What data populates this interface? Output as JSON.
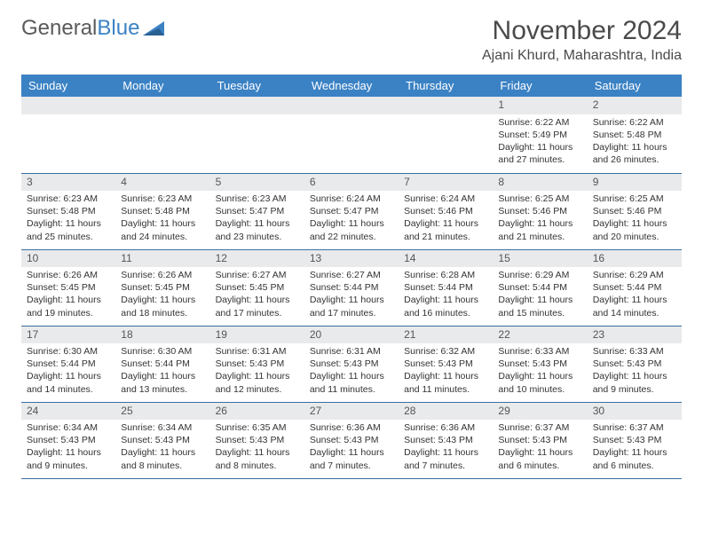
{
  "brand": {
    "part1": "General",
    "part2": "Blue"
  },
  "title": "November 2024",
  "location": "Ajani Khurd, Maharashtra, India",
  "colors": {
    "header_bg": "#3b82c4",
    "header_text": "#ffffff",
    "daynum_bg": "#e9eaec",
    "border": "#3b6fa0",
    "text": "#333333",
    "brand_gray": "#5a5a5a",
    "brand_blue": "#3b82c4"
  },
  "day_names": [
    "Sunday",
    "Monday",
    "Tuesday",
    "Wednesday",
    "Thursday",
    "Friday",
    "Saturday"
  ],
  "weeks": [
    [
      null,
      null,
      null,
      null,
      null,
      {
        "n": "1",
        "sr": "6:22 AM",
        "ss": "5:49 PM",
        "dl": "11 hours and 27 minutes."
      },
      {
        "n": "2",
        "sr": "6:22 AM",
        "ss": "5:48 PM",
        "dl": "11 hours and 26 minutes."
      }
    ],
    [
      {
        "n": "3",
        "sr": "6:23 AM",
        "ss": "5:48 PM",
        "dl": "11 hours and 25 minutes."
      },
      {
        "n": "4",
        "sr": "6:23 AM",
        "ss": "5:48 PM",
        "dl": "11 hours and 24 minutes."
      },
      {
        "n": "5",
        "sr": "6:23 AM",
        "ss": "5:47 PM",
        "dl": "11 hours and 23 minutes."
      },
      {
        "n": "6",
        "sr": "6:24 AM",
        "ss": "5:47 PM",
        "dl": "11 hours and 22 minutes."
      },
      {
        "n": "7",
        "sr": "6:24 AM",
        "ss": "5:46 PM",
        "dl": "11 hours and 21 minutes."
      },
      {
        "n": "8",
        "sr": "6:25 AM",
        "ss": "5:46 PM",
        "dl": "11 hours and 21 minutes."
      },
      {
        "n": "9",
        "sr": "6:25 AM",
        "ss": "5:46 PM",
        "dl": "11 hours and 20 minutes."
      }
    ],
    [
      {
        "n": "10",
        "sr": "6:26 AM",
        "ss": "5:45 PM",
        "dl": "11 hours and 19 minutes."
      },
      {
        "n": "11",
        "sr": "6:26 AM",
        "ss": "5:45 PM",
        "dl": "11 hours and 18 minutes."
      },
      {
        "n": "12",
        "sr": "6:27 AM",
        "ss": "5:45 PM",
        "dl": "11 hours and 17 minutes."
      },
      {
        "n": "13",
        "sr": "6:27 AM",
        "ss": "5:44 PM",
        "dl": "11 hours and 17 minutes."
      },
      {
        "n": "14",
        "sr": "6:28 AM",
        "ss": "5:44 PM",
        "dl": "11 hours and 16 minutes."
      },
      {
        "n": "15",
        "sr": "6:29 AM",
        "ss": "5:44 PM",
        "dl": "11 hours and 15 minutes."
      },
      {
        "n": "16",
        "sr": "6:29 AM",
        "ss": "5:44 PM",
        "dl": "11 hours and 14 minutes."
      }
    ],
    [
      {
        "n": "17",
        "sr": "6:30 AM",
        "ss": "5:44 PM",
        "dl": "11 hours and 14 minutes."
      },
      {
        "n": "18",
        "sr": "6:30 AM",
        "ss": "5:44 PM",
        "dl": "11 hours and 13 minutes."
      },
      {
        "n": "19",
        "sr": "6:31 AM",
        "ss": "5:43 PM",
        "dl": "11 hours and 12 minutes."
      },
      {
        "n": "20",
        "sr": "6:31 AM",
        "ss": "5:43 PM",
        "dl": "11 hours and 11 minutes."
      },
      {
        "n": "21",
        "sr": "6:32 AM",
        "ss": "5:43 PM",
        "dl": "11 hours and 11 minutes."
      },
      {
        "n": "22",
        "sr": "6:33 AM",
        "ss": "5:43 PM",
        "dl": "11 hours and 10 minutes."
      },
      {
        "n": "23",
        "sr": "6:33 AM",
        "ss": "5:43 PM",
        "dl": "11 hours and 9 minutes."
      }
    ],
    [
      {
        "n": "24",
        "sr": "6:34 AM",
        "ss": "5:43 PM",
        "dl": "11 hours and 9 minutes."
      },
      {
        "n": "25",
        "sr": "6:34 AM",
        "ss": "5:43 PM",
        "dl": "11 hours and 8 minutes."
      },
      {
        "n": "26",
        "sr": "6:35 AM",
        "ss": "5:43 PM",
        "dl": "11 hours and 8 minutes."
      },
      {
        "n": "27",
        "sr": "6:36 AM",
        "ss": "5:43 PM",
        "dl": "11 hours and 7 minutes."
      },
      {
        "n": "28",
        "sr": "6:36 AM",
        "ss": "5:43 PM",
        "dl": "11 hours and 7 minutes."
      },
      {
        "n": "29",
        "sr": "6:37 AM",
        "ss": "5:43 PM",
        "dl": "11 hours and 6 minutes."
      },
      {
        "n": "30",
        "sr": "6:37 AM",
        "ss": "5:43 PM",
        "dl": "11 hours and 6 minutes."
      }
    ]
  ],
  "labels": {
    "sunrise": "Sunrise:",
    "sunset": "Sunset:",
    "daylight": "Daylight:"
  }
}
